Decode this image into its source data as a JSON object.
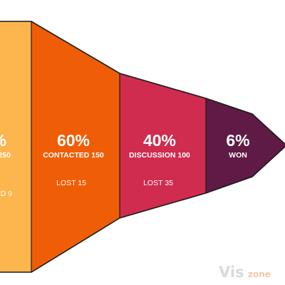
{
  "chart_data": {
    "type": "funnel",
    "stages": [
      {
        "percent": "%",
        "label": "250",
        "lost": "D 9",
        "color": "#fdb64e"
      },
      {
        "percent": "60%",
        "label": "CONTACTED 150",
        "lost": "LOST 15",
        "color": "#ef5e07"
      },
      {
        "percent": "40%",
        "label": "DISCUSSION 100",
        "lost": "LOST 35",
        "color": "#cf2c4f"
      },
      {
        "percent": "6%",
        "label": "WON",
        "lost": "",
        "color": "#5f1b45"
      }
    ],
    "outline_color": "#1a1a1a"
  },
  "watermark": {
    "part1": "Vis",
    "part2": "zone"
  }
}
